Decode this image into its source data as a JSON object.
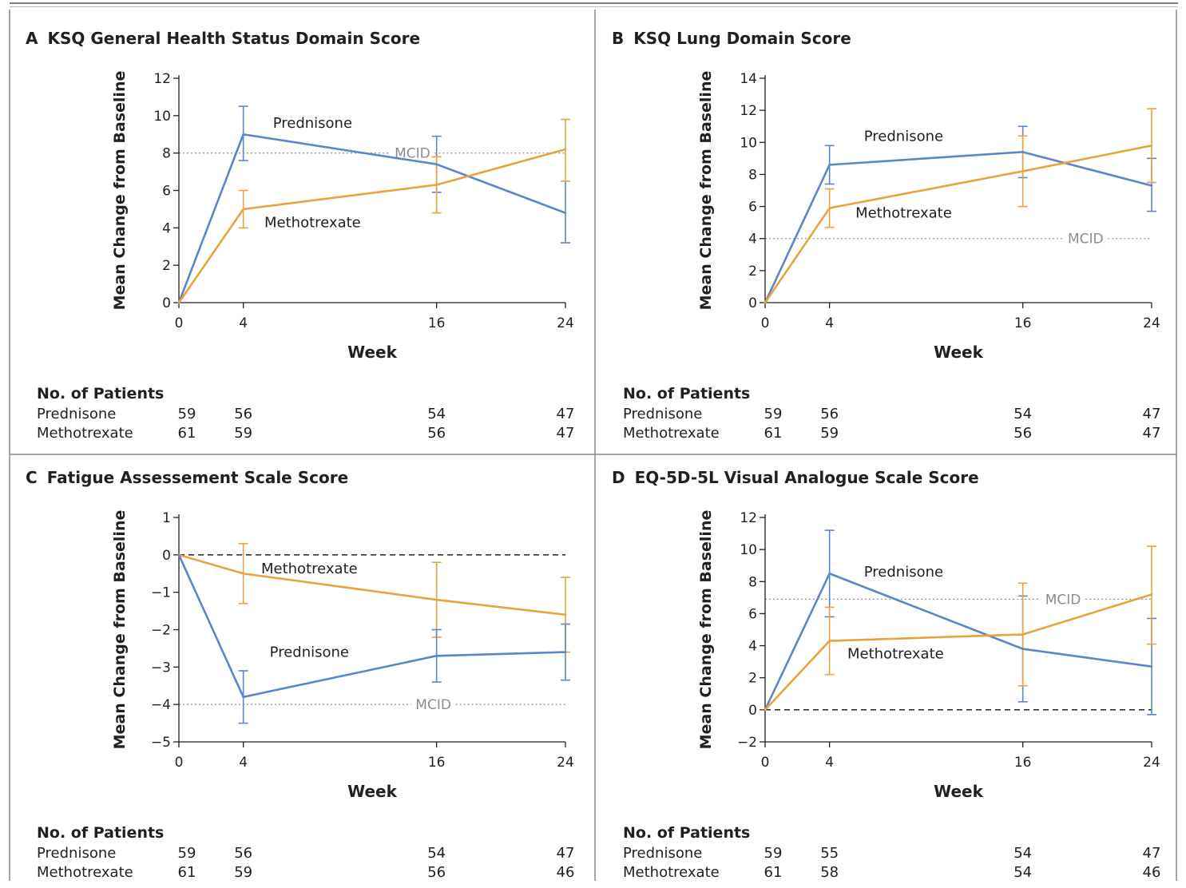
{
  "chart_data": [
    {
      "type": "line",
      "panel_letter": "A",
      "title": "KSQ General Health Status Domain Score",
      "xlabel": "Week",
      "ylabel": "Mean Change from Baseline",
      "x": [
        0,
        4,
        16,
        24
      ],
      "x_ticks": [
        "0",
        "4",
        "16",
        "24"
      ],
      "ylim": [
        0,
        12
      ],
      "y_ticks": [
        0,
        2,
        4,
        6,
        8,
        10,
        12
      ],
      "series": [
        {
          "name": "Prednisone",
          "color": "#5b87c7",
          "values": [
            0,
            9.0,
            7.4,
            4.8
          ],
          "err_low": [
            null,
            7.6,
            5.9,
            3.2
          ],
          "err_high": [
            null,
            10.5,
            8.9,
            6.5
          ],
          "label_pos": [
            8.3,
            9.6
          ]
        },
        {
          "name": "Methotrexate",
          "color": "#e8a33d",
          "values": [
            0,
            5.0,
            6.3,
            8.2
          ],
          "err_low": [
            null,
            4.0,
            4.8,
            6.5
          ],
          "err_high": [
            null,
            6.0,
            7.8,
            9.8
          ],
          "label_pos": [
            8.3,
            4.3
          ]
        }
      ],
      "reference_lines": [
        {
          "label": "MCID",
          "value": 8,
          "style": "dotted",
          "label_x": 14.5
        }
      ],
      "patients": {
        "header": "No. of Patients",
        "rows": [
          {
            "label": "Prednisone",
            "counts": [
              "59",
              "56",
              "54",
              "47"
            ]
          },
          {
            "label": "Methotrexate",
            "counts": [
              "61",
              "59",
              "56",
              "47"
            ]
          }
        ]
      }
    },
    {
      "type": "line",
      "panel_letter": "B",
      "title": "KSQ Lung Domain Score",
      "xlabel": "Week",
      "ylabel": "Mean Change from Baseline",
      "x": [
        0,
        4,
        16,
        24
      ],
      "x_ticks": [
        "0",
        "4",
        "16",
        "24"
      ],
      "ylim": [
        0,
        14
      ],
      "y_ticks": [
        0,
        2,
        4,
        6,
        8,
        10,
        12,
        14
      ],
      "series": [
        {
          "name": "Prednisone",
          "color": "#5b87c7",
          "values": [
            0,
            8.6,
            9.4,
            7.3
          ],
          "err_low": [
            null,
            7.4,
            7.8,
            5.7
          ],
          "err_high": [
            null,
            9.8,
            11.0,
            9.0
          ],
          "label_pos": [
            8.6,
            10.4
          ]
        },
        {
          "name": "Methotrexate",
          "color": "#e8a33d",
          "values": [
            0,
            5.9,
            8.2,
            9.8
          ],
          "err_low": [
            null,
            4.7,
            6.0,
            7.5
          ],
          "err_high": [
            null,
            7.1,
            10.4,
            12.1
          ],
          "label_pos": [
            8.6,
            5.6
          ]
        }
      ],
      "reference_lines": [
        {
          "label": "MCID",
          "value": 4,
          "style": "dotted",
          "label_x": 19.9
        }
      ],
      "patients": {
        "header": "No. of Patients",
        "rows": [
          {
            "label": "Prednisone",
            "counts": [
              "59",
              "56",
              "54",
              "47"
            ]
          },
          {
            "label": "Methotrexate",
            "counts": [
              "61",
              "59",
              "56",
              "47"
            ]
          }
        ]
      }
    },
    {
      "type": "line",
      "panel_letter": "C",
      "title": "Fatigue Assessement Scale Score",
      "xlabel": "Week",
      "ylabel": "Mean Change from Baseline",
      "x": [
        0,
        4,
        16,
        24
      ],
      "x_ticks": [
        "0",
        "4",
        "16",
        "24"
      ],
      "ylim": [
        -5,
        1
      ],
      "y_ticks": [
        -5,
        -4,
        -3,
        -2,
        -1,
        0,
        1
      ],
      "y_tick_labels": [
        "−5",
        "−4",
        "−3",
        "−2",
        "−1",
        "0",
        "1"
      ],
      "series": [
        {
          "name": "Methotrexate",
          "color": "#e8a33d",
          "values": [
            0,
            -0.5,
            -1.2,
            -1.6
          ],
          "err_low": [
            null,
            -1.3,
            -2.2,
            -2.6
          ],
          "err_high": [
            null,
            0.3,
            -0.2,
            -0.6
          ],
          "label_pos": [
            8.1,
            -0.37
          ]
        },
        {
          "name": "Prednisone",
          "color": "#5b87c7",
          "values": [
            0,
            -3.8,
            -2.7,
            -2.6
          ],
          "err_low": [
            null,
            -4.5,
            -3.4,
            -3.35
          ],
          "err_high": [
            null,
            -3.1,
            -2.0,
            -1.85
          ],
          "label_pos": [
            8.1,
            -2.6
          ]
        }
      ],
      "reference_lines": [
        {
          "label": "MCID",
          "value": -4,
          "style": "dotted",
          "label_x": 15.8
        },
        {
          "label": "",
          "value": 0,
          "style": "dashed"
        }
      ],
      "patients": {
        "header": "No. of Patients",
        "rows": [
          {
            "label": "Prednisone",
            "counts": [
              "59",
              "56",
              "54",
              "47"
            ]
          },
          {
            "label": "Methotrexate",
            "counts": [
              "61",
              "59",
              "56",
              "46"
            ]
          }
        ]
      }
    },
    {
      "type": "line",
      "panel_letter": "D",
      "title": "EQ-5D-5L Visual Analogue Scale Score",
      "xlabel": "Week",
      "ylabel": "Mean Change from Baseline",
      "x": [
        0,
        4,
        16,
        24
      ],
      "x_ticks": [
        "0",
        "4",
        "16",
        "24"
      ],
      "ylim": [
        -2,
        12
      ],
      "y_ticks": [
        -2,
        0,
        2,
        4,
        6,
        8,
        10,
        12
      ],
      "y_tick_labels": [
        "−2",
        "0",
        "2",
        "4",
        "6",
        "8",
        "10",
        "12"
      ],
      "series": [
        {
          "name": "Prednisone",
          "color": "#5b87c7",
          "values": [
            0,
            8.5,
            3.8,
            2.7
          ],
          "err_low": [
            null,
            5.8,
            0.5,
            -0.3
          ],
          "err_high": [
            null,
            11.2,
            7.1,
            5.7
          ],
          "label_pos": [
            8.6,
            8.6
          ]
        },
        {
          "name": "Methotrexate",
          "color": "#e8a33d",
          "values": [
            0,
            4.3,
            4.7,
            7.2
          ],
          "err_low": [
            null,
            2.2,
            1.5,
            4.1
          ],
          "err_high": [
            null,
            6.4,
            7.9,
            10.2
          ],
          "label_pos": [
            8.1,
            3.5
          ]
        }
      ],
      "reference_lines": [
        {
          "label": "MCID",
          "value": 6.9,
          "style": "dotted",
          "label_x": 18.5
        },
        {
          "label": "",
          "value": 0,
          "style": "dashed"
        }
      ],
      "patients": {
        "header": "No. of Patients",
        "rows": [
          {
            "label": "Prednisone",
            "counts": [
              "59",
              "55",
              "54",
              "47"
            ]
          },
          {
            "label": "Methotrexate",
            "counts": [
              "61",
              "58",
              "54",
              "46"
            ]
          }
        ]
      }
    }
  ]
}
